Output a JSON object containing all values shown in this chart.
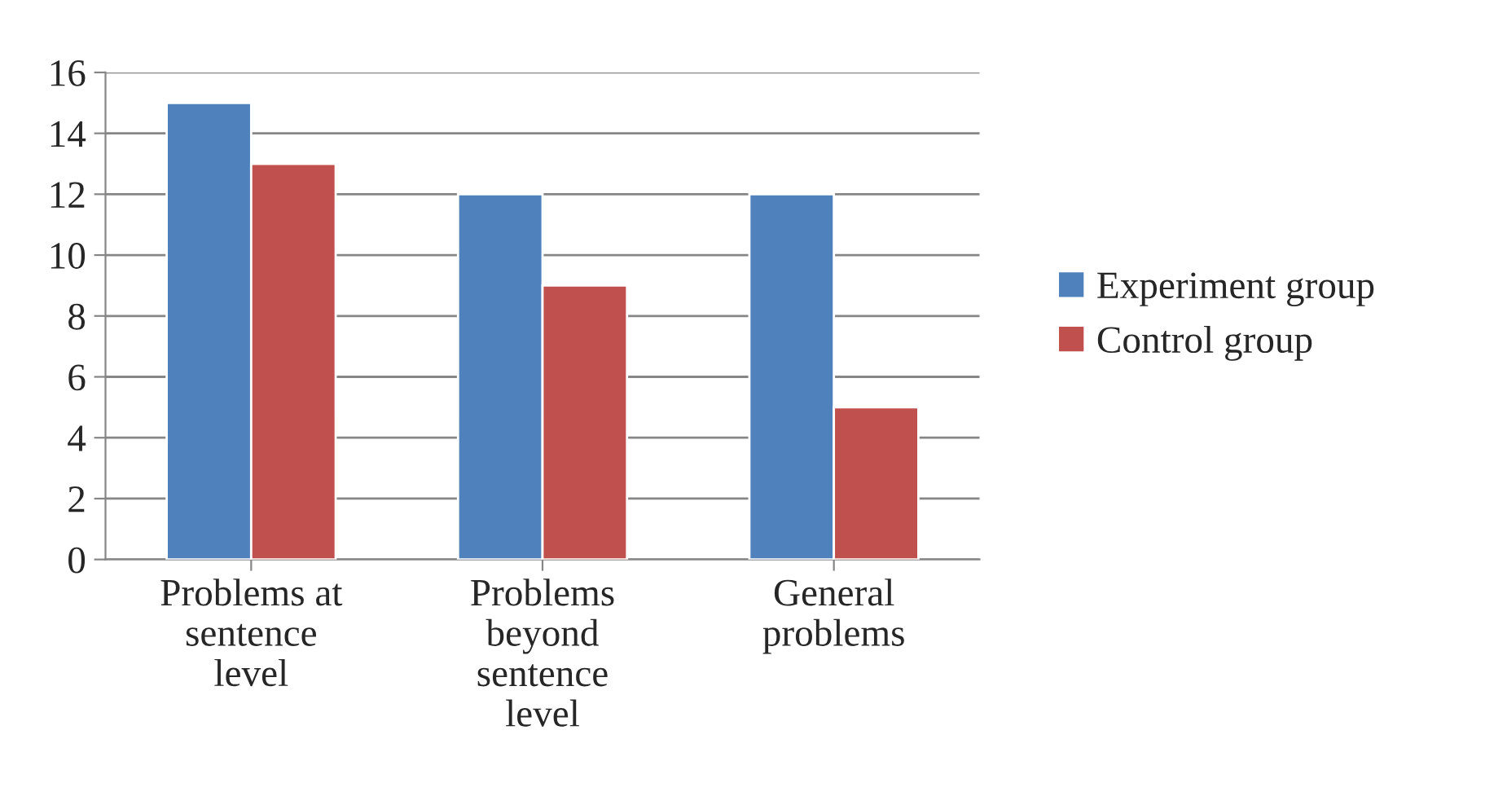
{
  "chart_data": {
    "type": "bar",
    "categories": [
      "Problems at\nsentence\nlevel",
      "Problems\nbeyond\nsentence\nlevel",
      "General\nproblems"
    ],
    "series": [
      {
        "name": "Experiment group",
        "color": "#4f81bd",
        "values": [
          15,
          12,
          12
        ]
      },
      {
        "name": "Control group",
        "color": "#c0504d",
        "values": [
          13,
          9,
          5
        ]
      }
    ],
    "ylim": [
      0,
      16
    ],
    "yticks": [
      0,
      2,
      4,
      6,
      8,
      10,
      12,
      14,
      16
    ],
    "grid": "y",
    "legend": "right"
  }
}
